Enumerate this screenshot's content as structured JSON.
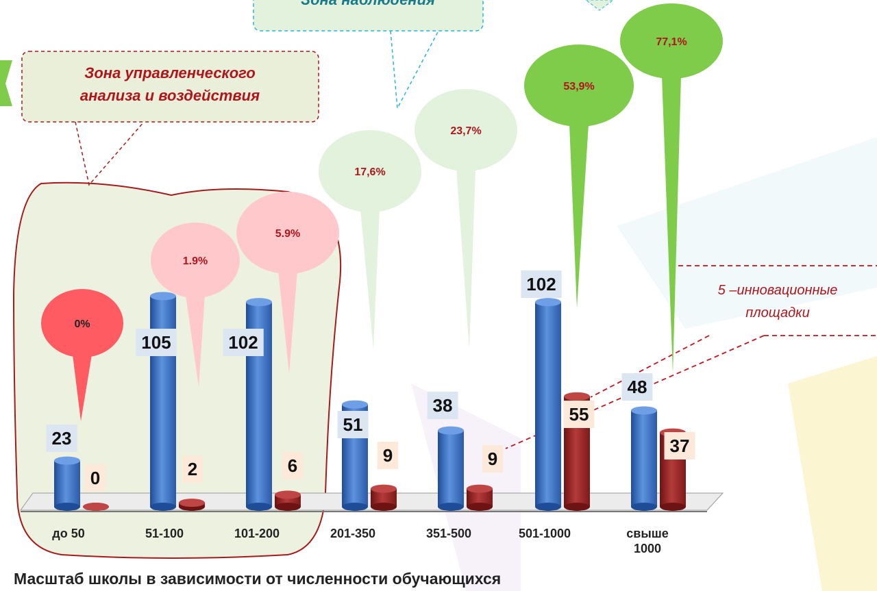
{
  "chart_data": {
    "type": "bar",
    "title": "Масштаб школы в зависимости от численности обучающихся",
    "categories": [
      "до 50",
      "51-100",
      "101-200",
      "201-350",
      "351-500",
      "501-1000",
      "свыше 1000"
    ],
    "series": [
      {
        "color": "#3a6fc4",
        "values": [
          23,
          105,
          102,
          51,
          38,
          102,
          48
        ]
      },
      {
        "color": "#9e2a2a",
        "values": [
          0,
          2,
          6,
          9,
          9,
          55,
          37
        ]
      }
    ],
    "shares": {
      "values": [
        0,
        1.9,
        5.9,
        17.6,
        23.7,
        53.9,
        77.1
      ],
      "value_labels": [
        "0%",
        "1.9%",
        "5.9%",
        "17,6%",
        "23,7%",
        "53,9%",
        "77,1%"
      ],
      "colors": [
        "#ff5b63",
        "#ffc9cc",
        "#ffc9cc",
        "#e3f2dc",
        "#e3f2dc",
        "#7fcb4a",
        "#7fcb4a"
      ]
    },
    "annotations": [
      "Зона управленческого анализа и воздействия",
      "Зона наблюдения",
      "5 –инновационные площадки"
    ]
  }
}
